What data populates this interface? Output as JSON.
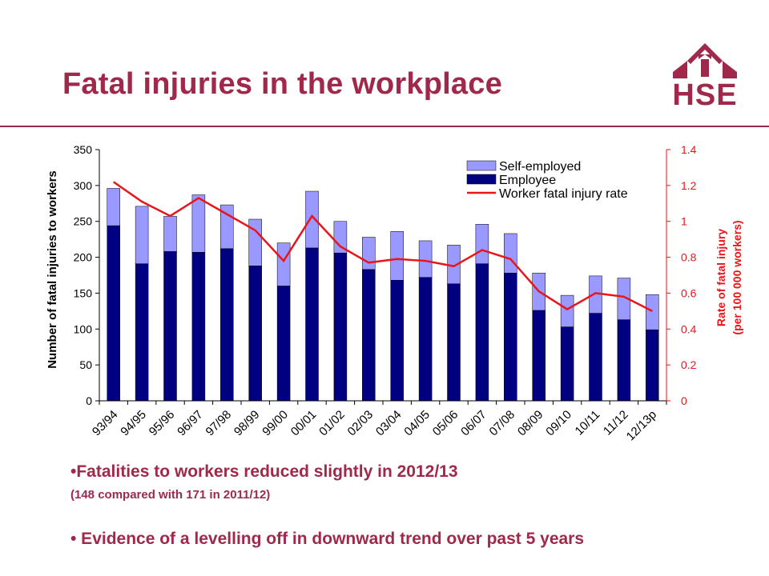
{
  "header": {
    "title": "Fatal injuries in the workplace",
    "logo_text": "HSE"
  },
  "colors": {
    "brand": "#a0294b",
    "employee": "#000080",
    "self_employed": "#9999ff",
    "rate_line": "#e8151b"
  },
  "chart_data": {
    "type": "bar",
    "stacked": true,
    "categories": [
      "93/94",
      "94/95",
      "95/96",
      "96/97",
      "97/98",
      "98/99",
      "99/00",
      "00/01",
      "01/02",
      "02/03",
      "03/04",
      "04/05",
      "05/06",
      "06/07",
      "07/08",
      "08/09",
      "09/10",
      "10/11",
      "11/12",
      "12/13p"
    ],
    "series": [
      {
        "name": "Employee",
        "axis": "left",
        "values": [
          244,
          191,
          208,
          207,
          212,
          188,
          160,
          213,
          206,
          183,
          168,
          172,
          163,
          191,
          178,
          126,
          103,
          122,
          113,
          99
        ]
      },
      {
        "name": "Self-employed",
        "axis": "left",
        "values": [
          52,
          80,
          49,
          80,
          61,
          65,
          60,
          79,
          44,
          45,
          68,
          51,
          54,
          55,
          55,
          52,
          44,
          52,
          58,
          49
        ]
      },
      {
        "name": "Worker fatal injury rate",
        "type": "line",
        "axis": "right",
        "values": [
          1.22,
          1.11,
          1.03,
          1.13,
          1.04,
          0.95,
          0.78,
          1.03,
          0.86,
          0.77,
          0.79,
          0.78,
          0.75,
          0.84,
          0.79,
          0.61,
          0.51,
          0.6,
          0.58,
          0.5
        ]
      }
    ],
    "ylabel": "Number of fatal injuries to workers",
    "y2label_line1": "Rate of fatal injury",
    "y2label_line2": "(per 100 000 workers)",
    "ylim": [
      0,
      350
    ],
    "yticks": [
      0,
      50,
      100,
      150,
      200,
      250,
      300,
      350
    ],
    "y2lim": [
      0,
      1.4
    ],
    "y2ticks": [
      "0",
      "0.2",
      "0.4",
      "0.6",
      "0.8",
      "1",
      "1.2",
      "1.4"
    ],
    "legend": {
      "position": "top-right",
      "items": [
        {
          "label": "Self-employed",
          "kind": "box",
          "color": "#9999ff"
        },
        {
          "label": "Employee",
          "kind": "box",
          "color": "#000080"
        },
        {
          "label": "Worker fatal injury rate",
          "kind": "line",
          "color": "#e8151b"
        }
      ]
    },
    "grid": false
  },
  "bullets": {
    "b1": "•Fatalities to workers reduced slightly in 2012/13",
    "b1_sub": "(148 compared with 171 in 2011/12)",
    "b2": "• Evidence of a levelling off in downward trend over past 5 years"
  }
}
